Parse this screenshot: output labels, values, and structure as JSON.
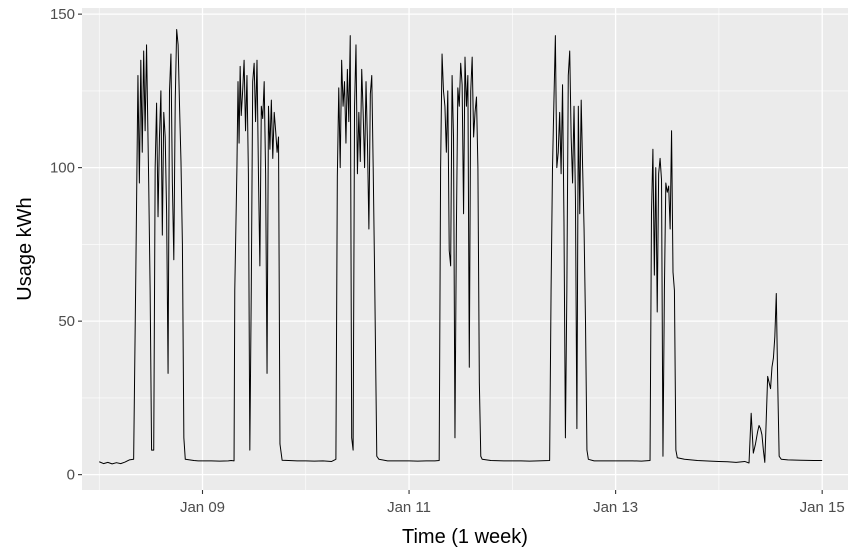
{
  "chart_data": {
    "type": "line",
    "title": "",
    "xlabel": "Time (1 week)",
    "ylabel": "Usage kWh",
    "x_tick_labels": [
      "Jan 09",
      "Jan 11",
      "Jan 13",
      "Jan 15"
    ],
    "y_tick_labels": [
      "0",
      "50",
      "100",
      "150"
    ],
    "xlim": [
      "2014-01-07 20:00",
      "2015-01-15 06:00"
    ],
    "xlim_note": "",
    "ylim": [
      -5,
      152
    ],
    "grid": true,
    "background": "#EBEBEB",
    "line_color": "#000000",
    "series": [
      {
        "name": "",
        "points": [
          [
            "01-08 00:00",
            4.2
          ],
          [
            "01-08 01:00",
            3.6
          ],
          [
            "01-08 02:00",
            4.0
          ],
          [
            "01-08 03:00",
            3.5
          ],
          [
            "01-08 04:00",
            3.9
          ],
          [
            "01-08 05:00",
            3.6
          ],
          [
            "01-08 06:00",
            4.1
          ],
          [
            "01-08 07:00",
            4.8
          ],
          [
            "01-08 08:00",
            5.0
          ],
          [
            "01-08 08:30",
            65
          ],
          [
            "01-08 09:00",
            130
          ],
          [
            "01-08 09:20",
            95
          ],
          [
            "01-08 09:40",
            135
          ],
          [
            "01-08 10:00",
            105
          ],
          [
            "01-08 10:20",
            138
          ],
          [
            "01-08 10:40",
            112
          ],
          [
            "01-08 11:00",
            140
          ],
          [
            "01-08 11:30",
            95
          ],
          [
            "01-08 11:50",
            60
          ],
          [
            "01-08 12:10",
            8
          ],
          [
            "01-08 12:40",
            8
          ],
          [
            "01-08 13:00",
            100
          ],
          [
            "01-08 13:20",
            121
          ],
          [
            "01-08 13:40",
            84
          ],
          [
            "01-08 14:00",
            110
          ],
          [
            "01-08 14:20",
            125
          ],
          [
            "01-08 14:40",
            78
          ],
          [
            "01-08 15:00",
            118
          ],
          [
            "01-08 15:20",
            110
          ],
          [
            "01-08 15:40",
            85
          ],
          [
            "01-08 16:00",
            33
          ],
          [
            "01-08 16:20",
            125
          ],
          [
            "01-08 16:40",
            137
          ],
          [
            "01-08 17:00",
            95
          ],
          [
            "01-08 17:20",
            70
          ],
          [
            "01-08 17:40",
            122
          ],
          [
            "01-08 18:00",
            145
          ],
          [
            "01-08 18:20",
            140
          ],
          [
            "01-08 18:40",
            120
          ],
          [
            "01-08 19:00",
            102
          ],
          [
            "01-08 19:20",
            75
          ],
          [
            "01-08 19:40",
            12
          ],
          [
            "01-08 20:00",
            5
          ],
          [
            "01-08 21:00",
            4.8
          ],
          [
            "01-08 22:00",
            4.6
          ],
          [
            "01-08 23:00",
            4.5
          ],
          [
            "01-09 00:00",
            4.5
          ],
          [
            "01-09 02:00",
            4.5
          ],
          [
            "01-09 04:00",
            4.4
          ],
          [
            "01-09 06:00",
            4.5
          ],
          [
            "01-09 06:40",
            4.6
          ],
          [
            "01-09 07:20",
            4.5
          ],
          [
            "01-09 07:30",
            60
          ],
          [
            "01-09 08:00",
            100
          ],
          [
            "01-09 08:15",
            128
          ],
          [
            "01-09 08:30",
            108
          ],
          [
            "01-09 08:45",
            133
          ],
          [
            "01-09 09:00",
            117
          ],
          [
            "01-09 09:20",
            125
          ],
          [
            "01-09 09:40",
            135
          ],
          [
            "01-09 10:00",
            112
          ],
          [
            "01-09 10:20",
            130
          ],
          [
            "01-09 10:40",
            98
          ],
          [
            "01-09 11:00",
            8
          ],
          [
            "01-09 11:20",
            60
          ],
          [
            "01-09 11:40",
            128
          ],
          [
            "01-09 12:00",
            134
          ],
          [
            "01-09 12:20",
            115
          ],
          [
            "01-09 12:40",
            135
          ],
          [
            "01-09 13:00",
            98
          ],
          [
            "01-09 13:20",
            68
          ],
          [
            "01-09 13:40",
            120
          ],
          [
            "01-09 14:00",
            116
          ],
          [
            "01-09 14:20",
            128
          ],
          [
            "01-09 14:40",
            98
          ],
          [
            "01-09 15:00",
            33
          ],
          [
            "01-09 15:20",
            120
          ],
          [
            "01-09 15:40",
            106
          ],
          [
            "01-09 16:00",
            122
          ],
          [
            "01-09 16:20",
            103
          ],
          [
            "01-09 16:40",
            118
          ],
          [
            "01-09 17:00",
            112
          ],
          [
            "01-09 17:20",
            105
          ],
          [
            "01-09 17:40",
            110
          ],
          [
            "01-09 18:00",
            10
          ],
          [
            "01-09 18:30",
            4.7
          ],
          [
            "01-09 20:00",
            4.6
          ],
          [
            "01-09 22:00",
            4.5
          ],
          [
            "01-10 00:00",
            4.5
          ],
          [
            "01-10 02:00",
            4.4
          ],
          [
            "01-10 04:00",
            4.5
          ],
          [
            "01-10 06:00",
            4.3
          ],
          [
            "01-10 07:00",
            5.0
          ],
          [
            "01-10 07:20",
            97
          ],
          [
            "01-10 07:40",
            126
          ],
          [
            "01-10 08:00",
            100
          ],
          [
            "01-10 08:20",
            135
          ],
          [
            "01-10 08:40",
            120
          ],
          [
            "01-10 09:00",
            128
          ],
          [
            "01-10 09:20",
            108
          ],
          [
            "01-10 09:40",
            132
          ],
          [
            "01-10 10:00",
            115
          ],
          [
            "01-10 10:20",
            143
          ],
          [
            "01-10 10:40",
            12
          ],
          [
            "01-10 11:00",
            8
          ],
          [
            "01-10 11:20",
            120
          ],
          [
            "01-10 11:40",
            140
          ],
          [
            "01-10 12:00",
            98
          ],
          [
            "01-10 12:20",
            118
          ],
          [
            "01-10 12:40",
            102
          ],
          [
            "01-10 13:00",
            132
          ],
          [
            "01-10 13:20",
            118
          ],
          [
            "01-10 13:40",
            100
          ],
          [
            "01-10 14:00",
            128
          ],
          [
            "01-10 14:20",
            108
          ],
          [
            "01-10 14:40",
            80
          ],
          [
            "01-10 15:00",
            124
          ],
          [
            "01-10 15:20",
            130
          ],
          [
            "01-10 15:40",
            100
          ],
          [
            "01-10 16:00",
            65
          ],
          [
            "01-10 16:30",
            6
          ],
          [
            "01-10 17:00",
            5
          ],
          [
            "01-10 19:00",
            4.5
          ],
          [
            "01-10 22:00",
            4.5
          ],
          [
            "01-11 00:00",
            4.5
          ],
          [
            "01-11 02:00",
            4.4
          ],
          [
            "01-11 04:00",
            4.5
          ],
          [
            "01-11 06:00",
            4.5
          ],
          [
            "01-11 07:00",
            4.6
          ],
          [
            "01-11 07:20",
            100
          ],
          [
            "01-11 07:40",
            137
          ],
          [
            "01-11 08:00",
            125
          ],
          [
            "01-11 08:20",
            120
          ],
          [
            "01-11 08:40",
            105
          ],
          [
            "01-11 09:00",
            125
          ],
          [
            "01-11 09:20",
            73
          ],
          [
            "01-11 09:40",
            68
          ],
          [
            "01-11 10:00",
            130
          ],
          [
            "01-11 10:20",
            110
          ],
          [
            "01-11 10:40",
            12
          ],
          [
            "01-11 11:00",
            80
          ],
          [
            "01-11 11:20",
            126
          ],
          [
            "01-11 11:40",
            120
          ],
          [
            "01-11 12:00",
            134
          ],
          [
            "01-11 12:20",
            127
          ],
          [
            "01-11 12:40",
            85
          ],
          [
            "01-11 13:00",
            136
          ],
          [
            "01-11 13:20",
            120
          ],
          [
            "01-11 13:40",
            130
          ],
          [
            "01-11 14:00",
            35
          ],
          [
            "01-11 14:20",
            125
          ],
          [
            "01-11 14:40",
            136
          ],
          [
            "01-11 15:00",
            110
          ],
          [
            "01-11 15:20",
            118
          ],
          [
            "01-11 15:40",
            123
          ],
          [
            "01-11 16:00",
            100
          ],
          [
            "01-11 16:20",
            30
          ],
          [
            "01-11 16:40",
            6
          ],
          [
            "01-11 17:00",
            5
          ],
          [
            "01-11 19:00",
            4.6
          ],
          [
            "01-11 22:00",
            4.5
          ],
          [
            "01-12 00:00",
            4.5
          ],
          [
            "01-12 02:00",
            4.5
          ],
          [
            "01-12 04:00",
            4.4
          ],
          [
            "01-12 06:00",
            4.5
          ],
          [
            "01-12 08:40",
            4.6
          ],
          [
            "01-12 09:00",
            60
          ],
          [
            "01-12 09:20",
            100
          ],
          [
            "01-12 09:40",
            122
          ],
          [
            "01-12 10:00",
            143
          ],
          [
            "01-12 10:20",
            100
          ],
          [
            "01-12 10:40",
            105
          ],
          [
            "01-12 11:00",
            118
          ],
          [
            "01-12 11:20",
            98
          ],
          [
            "01-12 11:40",
            127
          ],
          [
            "01-12 12:00",
            82
          ],
          [
            "01-12 12:20",
            12
          ],
          [
            "01-12 12:40",
            60
          ],
          [
            "01-12 13:00",
            130
          ],
          [
            "01-12 13:20",
            138
          ],
          [
            "01-12 13:40",
            110
          ],
          [
            "01-12 14:00",
            95
          ],
          [
            "01-12 14:20",
            120
          ],
          [
            "01-12 14:40",
            90
          ],
          [
            "01-12 15:00",
            15
          ],
          [
            "01-12 15:20",
            120
          ],
          [
            "01-12 15:40",
            85
          ],
          [
            "01-12 16:00",
            122
          ],
          [
            "01-12 16:20",
            100
          ],
          [
            "01-12 16:40",
            80
          ],
          [
            "01-12 17:00",
            50
          ],
          [
            "01-12 17:20",
            8
          ],
          [
            "01-12 17:40",
            5
          ],
          [
            "01-12 19:00",
            4.5
          ],
          [
            "01-12 22:00",
            4.5
          ],
          [
            "01-13 00:00",
            4.5
          ],
          [
            "01-13 02:00",
            4.5
          ],
          [
            "01-13 04:00",
            4.5
          ],
          [
            "01-13 06:00",
            4.4
          ],
          [
            "01-13 08:00",
            4.6
          ],
          [
            "01-13 08:20",
            85
          ],
          [
            "01-13 08:40",
            106
          ],
          [
            "01-13 09:00",
            65
          ],
          [
            "01-13 09:20",
            100
          ],
          [
            "01-13 09:40",
            53
          ],
          [
            "01-13 10:00",
            98
          ],
          [
            "01-13 10:20",
            103
          ],
          [
            "01-13 10:40",
            96
          ],
          [
            "01-13 11:00",
            6
          ],
          [
            "01-13 11:20",
            60
          ],
          [
            "01-13 11:40",
            95
          ],
          [
            "01-13 12:00",
            92
          ],
          [
            "01-13 12:20",
            94
          ],
          [
            "01-13 12:40",
            80
          ],
          [
            "01-13 13:00",
            112
          ],
          [
            "01-13 13:20",
            66
          ],
          [
            "01-13 13:40",
            60
          ],
          [
            "01-13 14:00",
            8
          ],
          [
            "01-13 14:20",
            5.5
          ],
          [
            "01-13 16:00",
            5
          ],
          [
            "01-13 19:00",
            4.6
          ],
          [
            "01-13 22:00",
            4.4
          ],
          [
            "01-14 00:00",
            4.3
          ],
          [
            "01-14 02:00",
            4.2
          ],
          [
            "01-14 04:00",
            4.0
          ],
          [
            "01-14 06:00",
            4.3
          ],
          [
            "01-14 07:00",
            3.8
          ],
          [
            "01-14 07:30",
            20
          ],
          [
            "01-14 08:00",
            7
          ],
          [
            "01-14 08:30",
            10
          ],
          [
            "01-14 09:00",
            14
          ],
          [
            "01-14 09:20",
            16
          ],
          [
            "01-14 09:40",
            15
          ],
          [
            "01-14 10:00",
            13
          ],
          [
            "01-14 10:20",
            8
          ],
          [
            "01-14 10:40",
            4
          ],
          [
            "01-14 11:00",
            18
          ],
          [
            "01-14 11:20",
            32
          ],
          [
            "01-14 11:40",
            30
          ],
          [
            "01-14 12:00",
            28
          ],
          [
            "01-14 12:20",
            35
          ],
          [
            "01-14 12:40",
            38
          ],
          [
            "01-14 13:00",
            45
          ],
          [
            "01-14 13:20",
            59
          ],
          [
            "01-14 13:40",
            30
          ],
          [
            "01-14 14:00",
            6
          ],
          [
            "01-14 14:30",
            5
          ],
          [
            "01-14 16:00",
            4.8
          ],
          [
            "01-14 19:00",
            4.7
          ],
          [
            "01-14 22:00",
            4.6
          ],
          [
            "01-15 00:00",
            4.6
          ]
        ]
      }
    ]
  }
}
